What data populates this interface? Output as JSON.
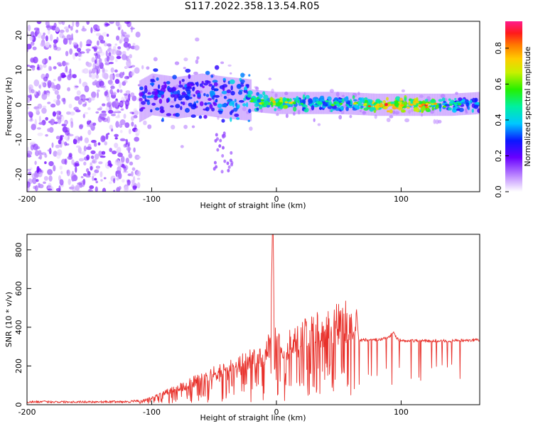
{
  "title": "S117.2022.358.13.54.R05",
  "chart_data": [
    {
      "type": "heatmap",
      "xlabel": "Height of straight line (km)",
      "ylabel": "Frequency (Hz)",
      "xlim": [
        -200,
        163
      ],
      "ylim": [
        -25,
        24
      ],
      "xticks": [
        -200,
        -100,
        0,
        100
      ],
      "xtick_labels": [
        "-200",
        "-100",
        "0",
        "100"
      ],
      "yticks": [
        -20,
        -10,
        0,
        10,
        20
      ],
      "ytick_labels": [
        "-20",
        "-10",
        "0",
        "10",
        "20"
      ],
      "colorbar": {
        "label": "Normalized spectral amplitude",
        "range": [
          0,
          0.95
        ],
        "ticks": [
          0,
          0.2,
          0.4,
          0.6,
          0.8
        ],
        "tick_labels": [
          "0.0",
          "0.2",
          "0.4",
          "0.6",
          "0.8"
        ]
      },
      "signal_ridge": {
        "x": [
          -110,
          -100,
          -80,
          -60,
          -40,
          -25,
          -15,
          0,
          20,
          50,
          80,
          100,
          120,
          140,
          163
        ],
        "frequency_hz": [
          1,
          3,
          2,
          3,
          2,
          1.5,
          1,
          0.5,
          0.5,
          0.5,
          0,
          0,
          0,
          0,
          0.5
        ],
        "amplitude": [
          0.3,
          0.35,
          0.35,
          0.35,
          0.4,
          0.45,
          0.55,
          0.7,
          0.5,
          0.45,
          0.75,
          0.8,
          0.75,
          0.45,
          0.4
        ]
      },
      "noise_region": {
        "x_range": [
          -200,
          -110
        ],
        "frequency_range": [
          -25,
          24
        ],
        "amplitude": 0.15
      }
    },
    {
      "type": "line",
      "xlabel": "Height of straight line (km)",
      "ylabel": "SNR (10 * v/v)",
      "xlim": [
        -200,
        163
      ],
      "ylim": [
        0,
        880
      ],
      "xticks": [
        -200,
        -100,
        0,
        100
      ],
      "xtick_labels": [
        "-200",
        "-100",
        "0",
        "100"
      ],
      "yticks": [
        0,
        200,
        400,
        600,
        800
      ],
      "ytick_labels": [
        "0",
        "200",
        "400",
        "600",
        "800"
      ],
      "color": "#e8302a",
      "series": [
        {
          "x": [
            -200,
            -120,
            -110,
            -100,
            -90,
            -80,
            -70,
            -60,
            -50,
            -40,
            -30,
            -20,
            -10,
            -5,
            -3,
            0,
            10,
            20,
            30,
            40,
            50,
            60,
            64,
            66,
            70,
            80,
            90,
            94,
            96,
            100,
            110,
            120,
            140,
            163
          ],
          "y": [
            15,
            15,
            20,
            40,
            70,
            100,
            130,
            160,
            190,
            210,
            240,
            280,
            300,
            380,
            880,
            350,
            370,
            420,
            460,
            490,
            505,
            515,
            520,
            330,
            335,
            335,
            345,
            380,
            345,
            330,
            330,
            330,
            330,
            335
          ]
        }
      ]
    }
  ]
}
